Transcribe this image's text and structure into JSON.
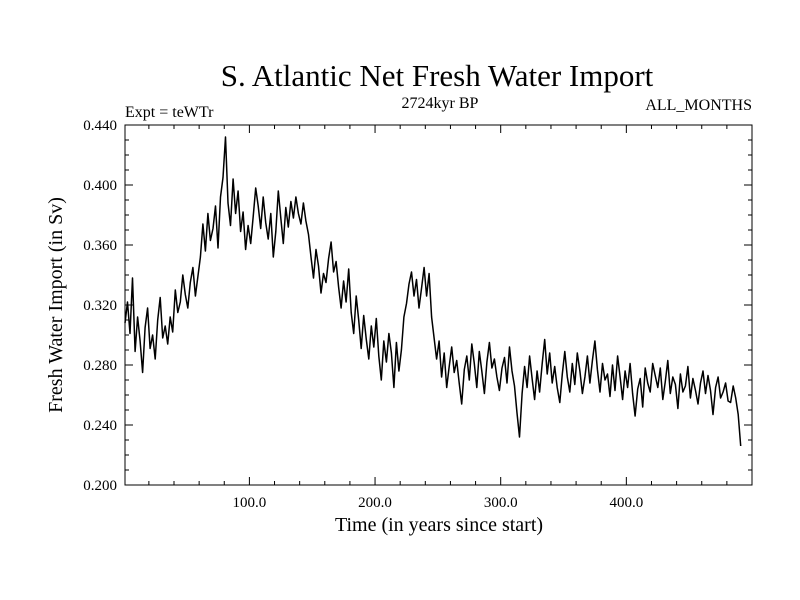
{
  "chart_data": {
    "type": "line",
    "title": "S. Atlantic Net Fresh Water Import",
    "subtitle_left": "Expt = teWTr",
    "subtitle_center": "2724kyr BP",
    "subtitle_right": "ALL_MONTHS",
    "xlabel": "Time (in years since start)",
    "ylabel": "Fresh Water Import (in Sv)",
    "xlim": [
      1,
      500
    ],
    "ylim": [
      0.2,
      0.44
    ],
    "x_ticks": [
      100,
      200,
      300,
      400
    ],
    "x_tick_labels": [
      "100.0",
      "200.0",
      "300.0",
      "400.0"
    ],
    "y_ticks": [
      0.2,
      0.24,
      0.28,
      0.32,
      0.36,
      0.4,
      0.44
    ],
    "y_tick_labels": [
      "0.200",
      "0.240",
      "0.280",
      "0.320",
      "0.360",
      "0.400",
      "0.440"
    ],
    "series": [
      {
        "name": "net fresh water import",
        "color": "#000000",
        "x_start": 1,
        "x_step": 2,
        "values": [
          0.308,
          0.322,
          0.301,
          0.338,
          0.289,
          0.312,
          0.296,
          0.275,
          0.305,
          0.318,
          0.291,
          0.3,
          0.284,
          0.31,
          0.325,
          0.298,
          0.306,
          0.294,
          0.312,
          0.302,
          0.33,
          0.315,
          0.322,
          0.34,
          0.327,
          0.318,
          0.335,
          0.345,
          0.326,
          0.339,
          0.352,
          0.374,
          0.356,
          0.381,
          0.363,
          0.371,
          0.386,
          0.358,
          0.392,
          0.405,
          0.432,
          0.388,
          0.373,
          0.404,
          0.381,
          0.396,
          0.369,
          0.382,
          0.357,
          0.373,
          0.361,
          0.379,
          0.398,
          0.386,
          0.371,
          0.392,
          0.375,
          0.364,
          0.381,
          0.352,
          0.369,
          0.396,
          0.378,
          0.361,
          0.385,
          0.372,
          0.389,
          0.378,
          0.392,
          0.381,
          0.374,
          0.388,
          0.376,
          0.367,
          0.352,
          0.338,
          0.357,
          0.346,
          0.328,
          0.341,
          0.335,
          0.351,
          0.362,
          0.342,
          0.349,
          0.332,
          0.318,
          0.336,
          0.322,
          0.344,
          0.315,
          0.301,
          0.326,
          0.31,
          0.291,
          0.313,
          0.297,
          0.284,
          0.306,
          0.292,
          0.311,
          0.286,
          0.27,
          0.296,
          0.282,
          0.301,
          0.288,
          0.265,
          0.295,
          0.276,
          0.29,
          0.312,
          0.321,
          0.334,
          0.342,
          0.326,
          0.337,
          0.318,
          0.331,
          0.345,
          0.326,
          0.341,
          0.312,
          0.298,
          0.284,
          0.296,
          0.272,
          0.288,
          0.265,
          0.279,
          0.292,
          0.275,
          0.283,
          0.268,
          0.254,
          0.277,
          0.286,
          0.27,
          0.294,
          0.281,
          0.265,
          0.289,
          0.276,
          0.261,
          0.282,
          0.295,
          0.278,
          0.284,
          0.272,
          0.263,
          0.278,
          0.285,
          0.268,
          0.292,
          0.276,
          0.266,
          0.248,
          0.232,
          0.261,
          0.279,
          0.265,
          0.286,
          0.271,
          0.257,
          0.276,
          0.262,
          0.281,
          0.297,
          0.274,
          0.288,
          0.268,
          0.279,
          0.265,
          0.255,
          0.274,
          0.289,
          0.272,
          0.262,
          0.281,
          0.267,
          0.288,
          0.276,
          0.261,
          0.272,
          0.286,
          0.268,
          0.283,
          0.296,
          0.277,
          0.262,
          0.281,
          0.27,
          0.274,
          0.259,
          0.28,
          0.263,
          0.286,
          0.272,
          0.257,
          0.276,
          0.265,
          0.281,
          0.261,
          0.246,
          0.264,
          0.271,
          0.252,
          0.278,
          0.268,
          0.262,
          0.281,
          0.273,
          0.265,
          0.278,
          0.257,
          0.269,
          0.283,
          0.261,
          0.272,
          0.267,
          0.251,
          0.274,
          0.262,
          0.266,
          0.279,
          0.258,
          0.271,
          0.263,
          0.254,
          0.268,
          0.276,
          0.261,
          0.273,
          0.263,
          0.247,
          0.265,
          0.272,
          0.258,
          0.262,
          0.268,
          0.256,
          0.255,
          0.266,
          0.258,
          0.247,
          0.226
        ]
      }
    ]
  }
}
